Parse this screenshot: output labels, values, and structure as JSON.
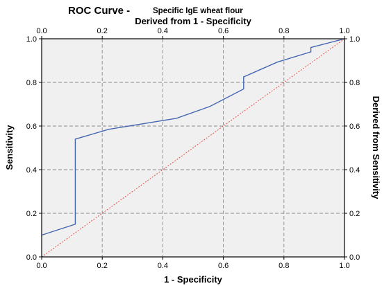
{
  "chart_data": {
    "type": "line",
    "title": "ROC Curve -",
    "subtitle": "Specific IgE  wheat flour",
    "xlabel": "1 - Specificity",
    "ylabel": "Sensitivity",
    "x2label": "Derived from 1 - Specificity",
    "y2label": "Derived from Sensitivity",
    "xlim": [
      0,
      1
    ],
    "ylim": [
      0,
      1
    ],
    "x_ticks": [
      "0.0",
      "0.2",
      "0.4",
      "0.6",
      "0.8",
      "1.0"
    ],
    "y_ticks": [
      "0.0",
      "0.2",
      "0.4",
      "0.6",
      "0.8",
      "1.0"
    ],
    "grid": true,
    "series": [
      {
        "color": "#4466b0",
        "x": [
          0.0,
          0.111,
          0.111,
          0.222,
          0.444,
          0.556,
          0.667,
          0.667,
          0.778,
          0.889,
          0.889,
          1.0
        ],
        "y": [
          0.1,
          0.15,
          0.54,
          0.585,
          0.635,
          0.69,
          0.77,
          0.825,
          0.893,
          0.94,
          0.96,
          1.0
        ]
      },
      {
        "color": "#e8504a",
        "style": "dotted",
        "x": [
          0,
          1
        ],
        "y": [
          0,
          1
        ]
      }
    ]
  }
}
